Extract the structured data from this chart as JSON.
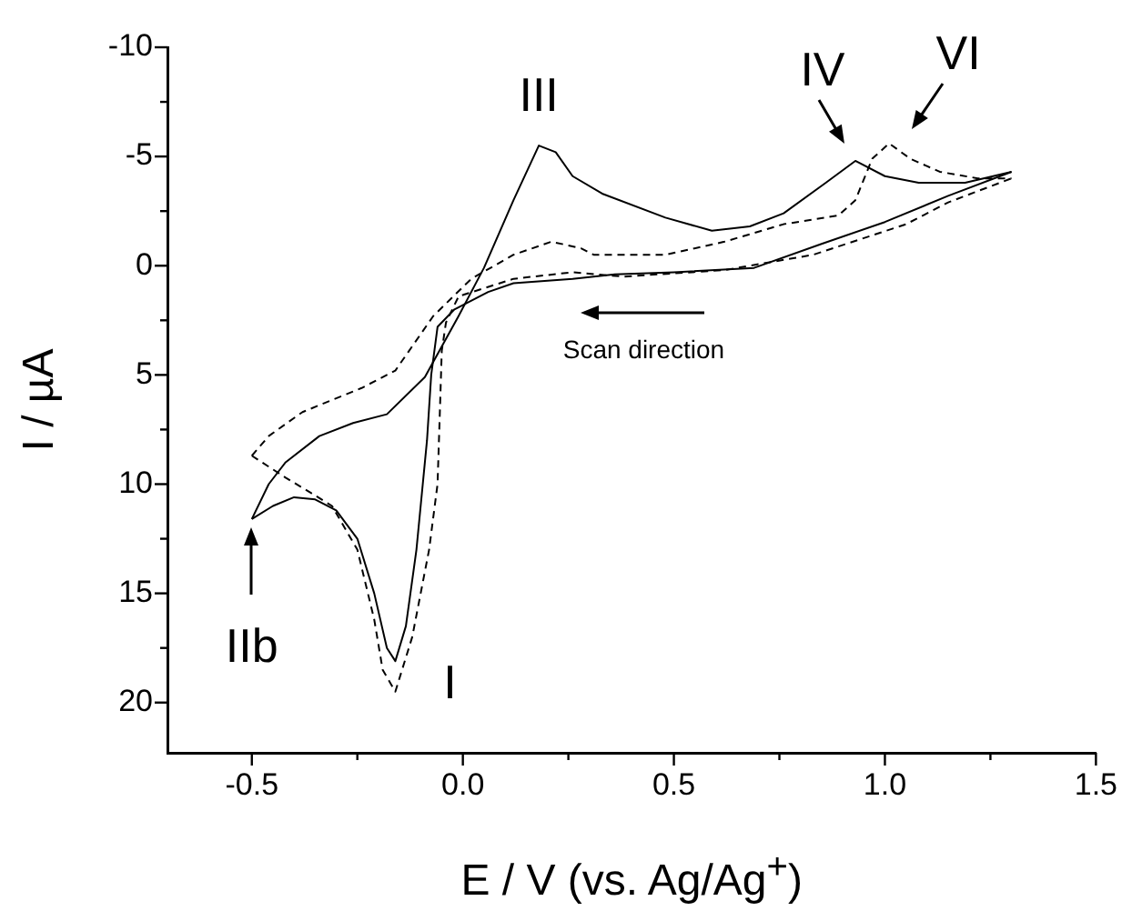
{
  "chart_data": {
    "type": "line",
    "xlabel": "E / V (vs. Ag/Ag$^{+}$)",
    "ylabel": "I / µA",
    "xlim": [
      -0.7,
      1.5
    ],
    "ylim": [
      22.3,
      -10
    ],
    "xticks": [
      -0.5,
      {
        "value": -0.25,
        "label": null
      },
      {
        "value": 0,
        "label": "0.0"
      },
      {
        "value": 0.25,
        "label": null
      },
      0.5,
      {
        "value": 0.75,
        "label": null
      },
      {
        "value": 1,
        "label": "1.0"
      },
      {
        "value": 1.25,
        "label": null
      },
      1.5
    ],
    "yticks": [
      -10,
      {
        "value": -7.5,
        "label": null
      },
      -5,
      {
        "value": -2.5,
        "label": null
      },
      0,
      {
        "value": 2.5,
        "label": null
      },
      5,
      {
        "value": 7.5,
        "label": null
      },
      10,
      {
        "value": 12.5,
        "label": null
      },
      15,
      {
        "value": 17.5,
        "label": null
      },
      20
    ],
    "grid": false,
    "legend": false,
    "series": [
      {
        "color": "#000000",
        "line_style": "solid",
        "x": [
          -0.5,
          -0.45,
          -0.4,
          -0.35,
          -0.3,
          -0.25,
          -0.21,
          -0.18,
          -0.16,
          -0.135,
          -0.11,
          -0.095,
          -0.085,
          -0.075,
          -0.06,
          -0.02,
          0.06,
          0.12,
          0.26,
          0.36,
          0.5,
          0.69,
          0.85,
          1.0,
          1.15,
          1.3
        ],
        "values": [
          11.6,
          11.0,
          10.6,
          10.7,
          11.2,
          12.5,
          15,
          17.5,
          18.1,
          16.5,
          13,
          10,
          8,
          5,
          2.8,
          2.0,
          1.2,
          0.8,
          0.6,
          0.4,
          0.3,
          0.1,
          -1.0,
          -2.0,
          -3.2,
          -4.3
        ]
      },
      {
        "color": "#000000",
        "line_style": "solid",
        "x": [
          -0.5,
          -0.46,
          -0.42,
          -0.34,
          -0.26,
          -0.18,
          -0.09,
          -0.01,
          0.05,
          0.12,
          0.18,
          0.22,
          0.26,
          0.33,
          0.48,
          0.59,
          0.68,
          0.76,
          0.86,
          0.93,
          1.0,
          1.08,
          1.19,
          1.3
        ],
        "values": [
          11.6,
          10.0,
          9.0,
          7.8,
          7.2,
          6.8,
          5.1,
          2.3,
          0.1,
          -3.0,
          -5.5,
          -5.2,
          -4.1,
          -3.3,
          -2.2,
          -1.6,
          -1.8,
          -2.4,
          -3.8,
          -4.8,
          -4.1,
          -3.8,
          -3.8,
          -4.3
        ]
      },
      {
        "color": "#000000",
        "line_style": "dashed",
        "x": [
          -0.5,
          -0.42,
          -0.36,
          -0.31,
          -0.25,
          -0.21,
          -0.19,
          -0.16,
          -0.12,
          -0.08,
          -0.06,
          -0.055,
          -0.05,
          -0.04,
          -0.01,
          0.12,
          0.26,
          0.38,
          0.62,
          0.83,
          1.05,
          1.15,
          1.3
        ],
        "values": [
          8.7,
          9.7,
          10.4,
          11.0,
          13,
          16.2,
          18.5,
          19.5,
          17,
          13,
          10,
          7,
          3.9,
          2.6,
          1.4,
          0.6,
          0.3,
          0.5,
          0.2,
          -0.5,
          -1.9,
          -2.9,
          -4.0
        ]
      },
      {
        "color": "#000000",
        "line_style": "dashed",
        "x": [
          -0.5,
          -0.46,
          -0.38,
          -0.24,
          -0.16,
          -0.07,
          0.02,
          0.12,
          0.21,
          0.28,
          0.31,
          0.48,
          0.62,
          0.76,
          0.89,
          0.93,
          0.97,
          1.01,
          1.06,
          1.13,
          1.22,
          1.3
        ],
        "values": [
          8.7,
          7.8,
          6.7,
          5.6,
          4.8,
          2.3,
          0.6,
          -0.5,
          -1.1,
          -0.8,
          -0.5,
          -0.5,
          -1.1,
          -1.9,
          -2.3,
          -3.0,
          -4.9,
          -5.6,
          -4.9,
          -4.3,
          -4.0,
          -4.0
        ]
      }
    ],
    "annotations": [
      {
        "text": "III",
        "x": 0.18,
        "y": -5.5
      },
      {
        "text": "IV",
        "x": 0.93,
        "y": -4.8
      },
      {
        "text": "VI",
        "x": 1.01,
        "y": -5.6
      },
      {
        "text": "I",
        "x": -0.16,
        "y": 19.5
      },
      {
        "text": "IIb",
        "x": -0.5,
        "y": 11.6
      },
      "Scan direction"
    ]
  }
}
